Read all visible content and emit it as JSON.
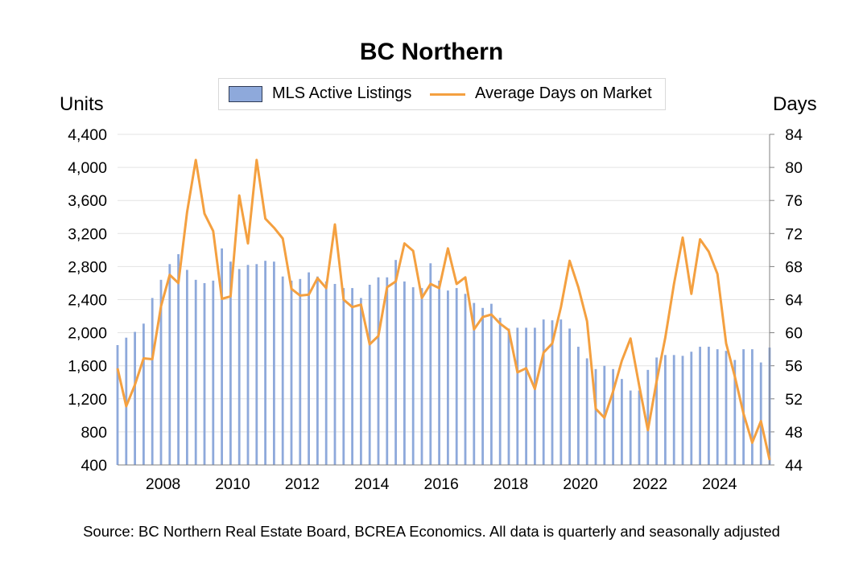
{
  "chart_data": {
    "type": "bar+line",
    "title": "BC Northern",
    "left_axis_label": "Units",
    "right_axis_label": "Days",
    "left_ylim": [
      400,
      4400
    ],
    "left_ticks": [
      "400",
      "800",
      "1,200",
      "1,600",
      "2,000",
      "2,400",
      "2,800",
      "3,200",
      "3,600",
      "4,000",
      "4,400"
    ],
    "right_ylim": [
      44,
      84
    ],
    "right_ticks": [
      "44",
      "48",
      "52",
      "56",
      "60",
      "64",
      "68",
      "72",
      "76",
      "80",
      "84"
    ],
    "x_start_year": 2006.75,
    "x_end_year": 2025.5,
    "x_tick_labels": [
      "2008",
      "2010",
      "2012",
      "2014",
      "2016",
      "2018",
      "2020",
      "2022",
      "2024"
    ],
    "legend": [
      {
        "name": "MLS Active Listings",
        "color": "#8ea9db",
        "kind": "bar"
      },
      {
        "name": "Average Days on Market",
        "color": "#f4a040",
        "kind": "line"
      }
    ],
    "series": [
      {
        "name": "MLS Active Listings",
        "axis": "left",
        "values": [
          1850,
          1940,
          2010,
          2110,
          2420,
          2640,
          2830,
          2950,
          2760,
          2640,
          2600,
          2630,
          3020,
          2860,
          2770,
          2820,
          2830,
          2870,
          2860,
          2680,
          2630,
          2650,
          2730,
          2680,
          2620,
          2590,
          2540,
          2540,
          2420,
          2580,
          2670,
          2670,
          2880,
          2620,
          2550,
          2540,
          2840,
          2630,
          2510,
          2540,
          2470,
          2360,
          2300,
          2350,
          2180,
          2050,
          2060,
          2060,
          2060,
          2160,
          2150,
          2160,
          2050,
          1830,
          1690,
          1560,
          1600,
          1560,
          1440,
          1300,
          1300,
          1550,
          1700,
          1730,
          1730,
          1720,
          1770,
          1830,
          1830,
          1800,
          1780,
          1670,
          1800,
          1800,
          1640,
          1820
        ]
      },
      {
        "name": "Average Days on Market",
        "axis": "right",
        "values": [
          55.7,
          51.1,
          53.7,
          56.9,
          56.8,
          63.2,
          67.0,
          66.0,
          74.6,
          80.9,
          74.4,
          72.3,
          64.1,
          64.4,
          76.6,
          70.8,
          80.9,
          73.8,
          72.7,
          71.4,
          65.3,
          64.5,
          64.6,
          66.6,
          65.4,
          73.1,
          64.0,
          63.1,
          63.4,
          58.6,
          59.6,
          65.5,
          66.2,
          70.8,
          69.9,
          64.2,
          65.9,
          65.4,
          70.2,
          65.9,
          66.7,
          60.4,
          61.9,
          62.2,
          61.1,
          60.3,
          55.2,
          55.7,
          53.2,
          57.6,
          58.7,
          63.1,
          68.7,
          65.5,
          61.4,
          50.8,
          49.7,
          52.9,
          56.6,
          59.3,
          53.6,
          48.2,
          54.1,
          59.4,
          65.9,
          71.5,
          64.7,
          71.3,
          69.8,
          67.1,
          58.7,
          54.7,
          50.2,
          46.7,
          49.3,
          44.6
        ]
      }
    ]
  },
  "legend_labels": {
    "bar": "MLS Active Listings",
    "line": "Average Days on Market"
  },
  "source_note": "Source: BC Northern Real Estate Board, BCREA Economics. All data is quarterly and seasonally adjusted"
}
